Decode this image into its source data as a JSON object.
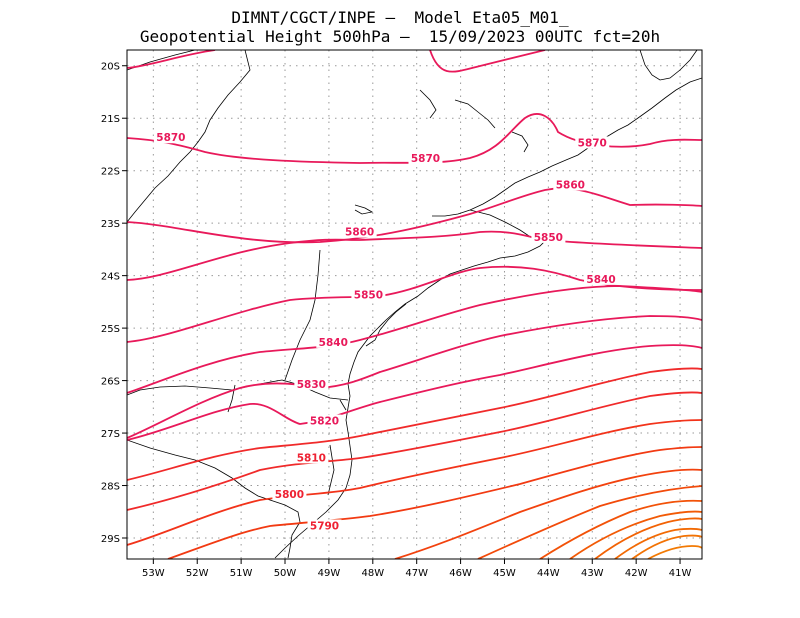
{
  "header": {
    "line1": "DIMNT/CGCT/INPE –  Model Eta05_M01_",
    "line2": "Geopotential Height 500hPa –  15/09/2023 00UTC fct=20h"
  },
  "axes": {
    "lon_ticks": [
      "53W",
      "52W",
      "51W",
      "50W",
      "49W",
      "48W",
      "47W",
      "46W",
      "45W",
      "44W",
      "43W",
      "42W",
      "41W"
    ],
    "lat_ticks": [
      "20S",
      "21S",
      "22S",
      "23S",
      "24S",
      "25S",
      "26S",
      "27S",
      "28S",
      "29S"
    ]
  },
  "chart_data": {
    "type": "contour",
    "xrange": [
      -53.6,
      -40.5
    ],
    "yrange": [
      -29.4,
      -19.7
    ],
    "grid": true,
    "contour_labels": [
      {
        "text": "5870",
        "lon": -52.6,
        "lat": -21.4
      },
      {
        "text": "5870",
        "lon": -46.8,
        "lat": -21.8
      },
      {
        "text": "5870",
        "lon": -43.0,
        "lat": -21.5
      },
      {
        "text": "5860",
        "lon": -43.5,
        "lat": -22.3
      },
      {
        "text": "5860",
        "lon": -48.3,
        "lat": -23.2
      },
      {
        "text": "5850",
        "lon": -44.0,
        "lat": -23.3
      },
      {
        "text": "5850",
        "lon": -48.1,
        "lat": -24.4
      },
      {
        "text": "5840",
        "lon": -42.8,
        "lat": -24.1
      },
      {
        "text": "5840",
        "lon": -48.9,
        "lat": -25.3
      },
      {
        "text": "5830",
        "lon": -49.4,
        "lat": -26.1
      },
      {
        "text": "5820",
        "lon": -49.1,
        "lat": -26.8
      },
      {
        "text": "5810",
        "lon": -49.4,
        "lat": -27.5
      },
      {
        "text": "5800",
        "lon": -49.9,
        "lat": -28.2
      },
      {
        "text": "5790",
        "lon": -49.1,
        "lat": -28.8
      }
    ]
  }
}
